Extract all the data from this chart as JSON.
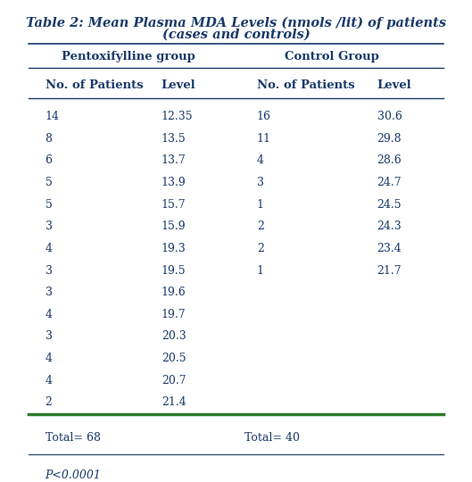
{
  "title_line1": "Table 2: Mean Plasma MDA Levels (nmols /lit) of patients",
  "title_line2": "(cases and controls)",
  "group1_header": "Pentoxifylline group",
  "group2_header": "Control Group",
  "col_headers": [
    "No. of Patients",
    "Level",
    "No. of Patients",
    "Level"
  ],
  "pento_data": [
    [
      "14",
      "12.35"
    ],
    [
      "8",
      "13.5"
    ],
    [
      "6",
      "13.7"
    ],
    [
      "5",
      "13.9"
    ],
    [
      "5",
      "15.7"
    ],
    [
      "3",
      "15.9"
    ],
    [
      "4",
      "19.3"
    ],
    [
      "3",
      "19.5"
    ],
    [
      "3",
      "19.6"
    ],
    [
      "4",
      "19.7"
    ],
    [
      "3",
      "20.3"
    ],
    [
      "4",
      "20.5"
    ],
    [
      "4",
      "20.7"
    ],
    [
      "2",
      "21.4"
    ]
  ],
  "control_data": [
    [
      "16",
      "30.6"
    ],
    [
      "11",
      "29.8"
    ],
    [
      "4",
      "28.6"
    ],
    [
      "3",
      "24.7"
    ],
    [
      "1",
      "24.5"
    ],
    [
      "2",
      "24.3"
    ],
    [
      "2",
      "23.4"
    ],
    [
      "1",
      "21.7"
    ]
  ],
  "total1": "Total= 68",
  "total2": "Total= 40",
  "pvalue": "P<0.0001",
  "text_color": "#1a3a6b",
  "line_color_dark": "#1a3a6b",
  "line_color_bottom": "#2d7a2d",
  "bg_color": "#ffffff",
  "font_size_title": 10.5,
  "font_size_header": 9.5,
  "font_size_data": 9.0
}
